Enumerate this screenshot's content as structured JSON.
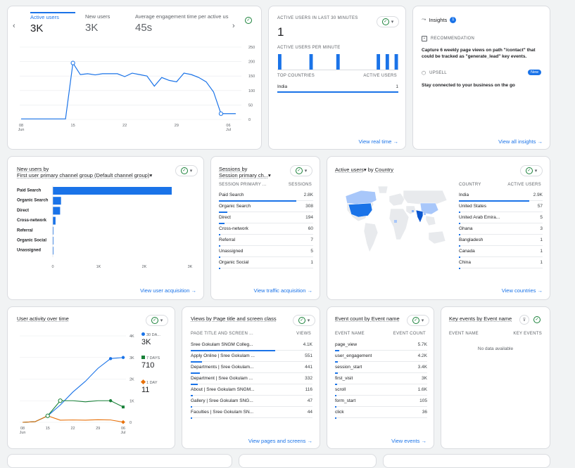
{
  "overview": {
    "tabs": [
      {
        "label": "Active users",
        "value": "3K"
      },
      {
        "label": "New users",
        "value": "3K"
      },
      {
        "label": "Average engagement time per active us",
        "value": "45s"
      }
    ],
    "x_ticks": [
      {
        "d": "08",
        "m": "Jun"
      },
      {
        "d": "15",
        "m": ""
      },
      {
        "d": "22",
        "m": ""
      },
      {
        "d": "29",
        "m": ""
      },
      {
        "d": "06",
        "m": "Jul"
      }
    ],
    "y_ticks": [
      "250",
      "200",
      "150",
      "100",
      "50",
      "0"
    ]
  },
  "realtime": {
    "title": "ACTIVE USERS IN LAST 30 MINUTES",
    "value": "1",
    "per_minute_label": "ACTIVE USERS PER MINUTE",
    "col1": "TOP COUNTRIES",
    "col2": "ACTIVE USERS",
    "rows": [
      {
        "name": "India",
        "value": "1"
      }
    ],
    "link": "View real time"
  },
  "insights": {
    "title": "Insights",
    "badge": "1",
    "rec_label": "RECOMMENDATION",
    "rec_text": "Capture 6 weekly page views on path \"/contact\" that could be tracked as \"generate_lead\" key events.",
    "upsell_label": "UPSELL",
    "new_badge": "New",
    "upsell_text": "Stay connected to your business on the go",
    "link": "View all insights"
  },
  "acquisition": {
    "title1": "New users by",
    "title2": "First user primary channel group (Default channel group)",
    "link": "View user acquisition",
    "x_ticks": [
      "0",
      "1K",
      "2K",
      "3K"
    ]
  },
  "traffic": {
    "title1": "Sessions by",
    "title2": "Session primary ch...",
    "col1": "SESSION PRIMARY ...",
    "col2": "SESSIONS",
    "rows": [
      {
        "name": "Paid Search",
        "value": "2.8K"
      },
      {
        "name": "Organic Search",
        "value": "308"
      },
      {
        "name": "Direct",
        "value": "194"
      },
      {
        "name": "Cross-network",
        "value": "60"
      },
      {
        "name": "Referral",
        "value": "7"
      },
      {
        "name": "Unassigned",
        "value": "5"
      },
      {
        "name": "Organic Social",
        "value": "1"
      }
    ],
    "link": "View traffic acquisition"
  },
  "country": {
    "title1": "Active users",
    "title2": "by",
    "title3": "Country",
    "col1": "COUNTRY",
    "col2": "ACTIVE USERS",
    "rows": [
      {
        "name": "India",
        "value": "2.9K"
      },
      {
        "name": "United States",
        "value": "57"
      },
      {
        "name": "United Arab Emira...",
        "value": "5"
      },
      {
        "name": "Ghana",
        "value": "3"
      },
      {
        "name": "Bangladesh",
        "value": "1"
      },
      {
        "name": "Canada",
        "value": "1"
      },
      {
        "name": "China",
        "value": "1"
      }
    ],
    "link": "View countries"
  },
  "activity": {
    "title": "User activity over time",
    "legend": [
      {
        "label": "30 DA...",
        "value": "3K",
        "color": "#1a73e8"
      },
      {
        "label": "7 DAYS",
        "value": "710",
        "color": "#188038"
      },
      {
        "label": "1 DAY",
        "value": "11",
        "color": "#e8710a"
      }
    ],
    "y_ticks": [
      "4K",
      "3K",
      "2K",
      "1K",
      "0"
    ],
    "x_ticks": [
      {
        "d": "08",
        "m": "Jun"
      },
      {
        "d": "15",
        "m": ""
      },
      {
        "d": "22",
        "m": ""
      },
      {
        "d": "29",
        "m": ""
      },
      {
        "d": "06",
        "m": "Jul"
      }
    ]
  },
  "pages": {
    "title": "Views by Page title and screen class",
    "col1": "PAGE TITLE AND SCREEN ...",
    "col2": "VIEWS",
    "rows": [
      {
        "name": "Sree Gokulam SNGM Colleg...",
        "value": "4.1K"
      },
      {
        "name": "Apply Online | Sree Gokulam ...",
        "value": "551"
      },
      {
        "name": "Departments | Sree Gokulam...",
        "value": "441"
      },
      {
        "name": "Department | Sree Gokulam ...",
        "value": "332"
      },
      {
        "name": "About | Sree Gokulam SNGM...",
        "value": "116"
      },
      {
        "name": "Gallery | Sree Gokulam SNG...",
        "value": "47"
      },
      {
        "name": "Faculties | Sree Gokulam SN...",
        "value": "44"
      }
    ],
    "link": "View pages and screens"
  },
  "events": {
    "title": "Event count by Event name",
    "col1": "EVENT NAME",
    "col2": "EVENT COUNT",
    "rows": [
      {
        "name": "page_view",
        "value": "5.7K"
      },
      {
        "name": "user_engagement",
        "value": "4.2K"
      },
      {
        "name": "session_start",
        "value": "3.4K"
      },
      {
        "name": "first_visit",
        "value": "3K"
      },
      {
        "name": "scroll",
        "value": "1.6K"
      },
      {
        "name": "form_start",
        "value": "105"
      },
      {
        "name": "click",
        "value": "36"
      }
    ],
    "link": "View events"
  },
  "key_events": {
    "title": "Key events by Event name",
    "col1": "EVENT NAME",
    "col2": "KEY EVENTS",
    "empty": "No data available"
  },
  "chart_data": [
    {
      "type": "line",
      "title": "Active users",
      "x": [
        "Jun 08",
        "Jun 09",
        "Jun 10",
        "Jun 11",
        "Jun 12",
        "Jun 13",
        "Jun 14",
        "Jun 15",
        "Jun 16",
        "Jun 17",
        "Jun 18",
        "Jun 19",
        "Jun 20",
        "Jun 21",
        "Jun 22",
        "Jun 23",
        "Jun 24",
        "Jun 25",
        "Jun 26",
        "Jun 27",
        "Jun 28",
        "Jun 29",
        "Jun 30",
        "Jul 01",
        "Jul 02",
        "Jul 03",
        "Jul 04",
        "Jul 05",
        "Jul 06",
        "Jul 07"
      ],
      "series": [
        {
          "name": "Active users",
          "values": [
            2,
            2,
            2,
            2,
            2,
            2,
            2,
            195,
            155,
            158,
            154,
            158,
            158,
            158,
            148,
            160,
            155,
            150,
            115,
            145,
            135,
            130,
            160,
            155,
            145,
            130,
            95,
            20,
            20,
            20
          ]
        }
      ],
      "ylim": [
        0,
        250
      ]
    },
    {
      "type": "bar",
      "title": "New users by First user primary channel group (Default channel group)",
      "categories": [
        "Paid Search",
        "Organic Search",
        "Direct",
        "Cross-network",
        "Referral",
        "Organic Social",
        "Unassigned"
      ],
      "values": [
        2600,
        180,
        160,
        60,
        7,
        1,
        5
      ],
      "xlim": [
        0,
        3000
      ]
    },
    {
      "type": "line",
      "title": "User activity over time",
      "x": [
        "Jun 08",
        "Jun 12",
        "Jun 15",
        "Jun 18",
        "Jun 22",
        "Jun 25",
        "Jun 29",
        "Jul 02",
        "Jul 06"
      ],
      "series": [
        {
          "name": "30 DA...",
          "values": [
            0,
            30,
            300,
            800,
            1400,
            1900,
            2500,
            2950,
            3000
          ]
        },
        {
          "name": "7 DAYS",
          "values": [
            0,
            30,
            300,
            1000,
            1000,
            950,
            1000,
            1000,
            710
          ]
        },
        {
          "name": "1 DAY",
          "values": [
            0,
            30,
            300,
            100,
            110,
            100,
            120,
            110,
            11
          ]
        }
      ],
      "ylim": [
        0,
        4000
      ]
    },
    {
      "type": "bar",
      "title": "Active users per minute",
      "values": [
        1,
        0,
        0,
        0,
        0,
        0,
        0,
        1,
        0,
        0,
        0,
        0,
        0,
        1,
        0,
        0,
        0,
        0,
        0,
        0,
        0,
        0,
        1,
        0,
        1,
        0,
        1
      ],
      "ylim": [
        0,
        1
      ]
    }
  ]
}
